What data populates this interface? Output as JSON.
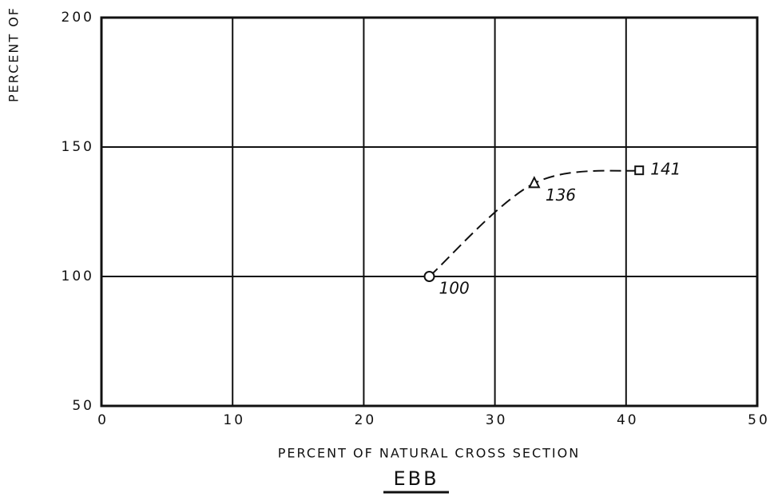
{
  "chart_data": {
    "type": "line",
    "title": "EBB",
    "xlabel": "PERCENT OF NATURAL CROSS SECTION",
    "ylabel": "PERCENT OF",
    "x": [
      25,
      33,
      41
    ],
    "series": [
      {
        "values": [
          100,
          136,
          141
        ],
        "color": "#111111",
        "markers": [
          "circle",
          "triangle",
          "square"
        ]
      }
    ],
    "xlim": [
      0,
      50
    ],
    "xticks": [
      0,
      10,
      20,
      30,
      40,
      50
    ],
    "ylim": [
      50,
      200
    ],
    "yticks": [
      50,
      100,
      150,
      200
    ],
    "grid": true,
    "dashed": true,
    "data_labels": true
  }
}
